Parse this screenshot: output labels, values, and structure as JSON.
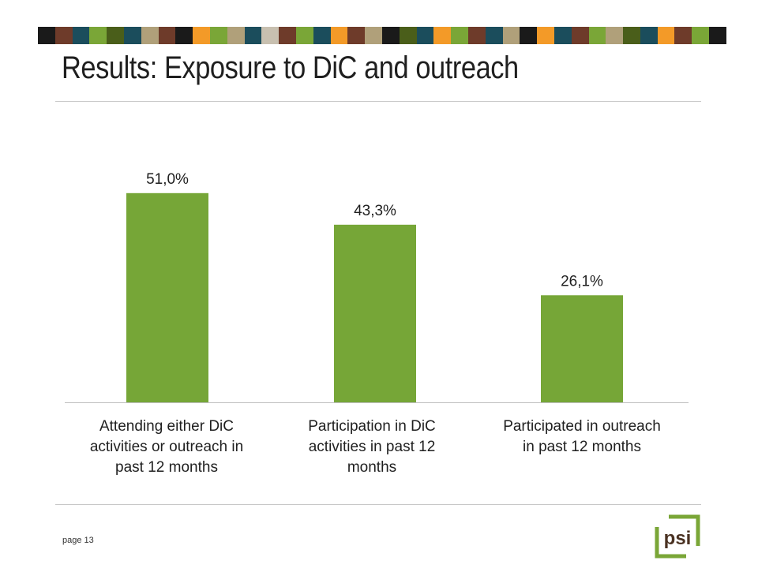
{
  "title": "Results: Exposure to DiC and outreach",
  "footer": {
    "page": "page 13"
  },
  "logo": {
    "text": "psi",
    "frame_color": "#7aa637",
    "text_color": "#4a3222"
  },
  "header_stripe_colors": [
    "#1a1a1a",
    "#6e3b2a",
    "#1b4d5c",
    "#7aa637",
    "#4a5e1a",
    "#1b4d5c",
    "#b0a07a",
    "#6e3b2a",
    "#1a1a1a",
    "#f39a28",
    "#7aa637",
    "#b0a07a",
    "#1b4d5c",
    "#c8c0b0",
    "#6e3b2a",
    "#7aa637",
    "#1b4d5c",
    "#f39a28",
    "#6e3b2a",
    "#b0a07a",
    "#1a1a1a",
    "#4a5e1a",
    "#1b4d5c",
    "#f39a28",
    "#7aa637",
    "#6e3b2a",
    "#1b4d5c",
    "#b0a07a",
    "#1a1a1a",
    "#f39a28",
    "#1b4d5c",
    "#6e3b2a",
    "#7aa637",
    "#b0a07a",
    "#4a5e1a",
    "#1b4d5c",
    "#f39a28",
    "#6e3b2a",
    "#7aa637",
    "#1a1a1a"
  ],
  "chart_data": {
    "type": "bar",
    "categories": [
      "Attending either DiC activities or outreach in past 12 months",
      "Participation in DiC activities in past 12 months",
      "Participated in outreach in past 12 months"
    ],
    "category_lines": [
      [
        "Attending either DiC",
        "activities or outreach in",
        "past 12 months"
      ],
      [
        "Participation in DiC",
        "activities in past 12",
        "months"
      ],
      [
        "Participated in outreach",
        "in past 12 months"
      ]
    ],
    "values": [
      51.0,
      43.3,
      26.1
    ],
    "data_labels": [
      "51,0%",
      "43,3%",
      "26,1%"
    ],
    "bar_color": "#76a637",
    "ylim": [
      0,
      60
    ],
    "grid": false,
    "legend": "none"
  }
}
